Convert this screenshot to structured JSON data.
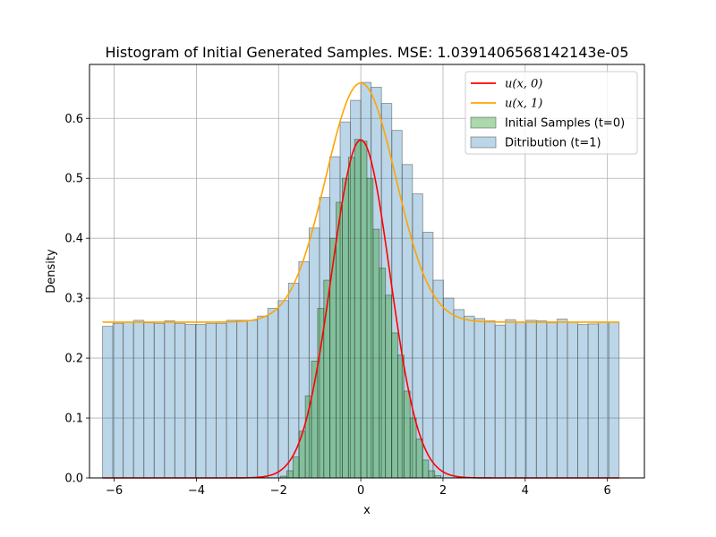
{
  "chart_data": {
    "type": "bar",
    "title": "Histogram of Initial Generated Samples. MSE: 1.0391406568142143e-05",
    "xlabel": "x",
    "ylabel": "Density",
    "xlim": [
      -6.6,
      6.9
    ],
    "ylim": [
      0,
      0.69
    ],
    "xticks": [
      -6,
      -4,
      -2,
      0,
      2,
      4,
      6
    ],
    "xtick_labels": [
      "−6",
      "−4",
      "−2",
      "0",
      "2",
      "4",
      "6"
    ],
    "yticks": [
      0.0,
      0.1,
      0.2,
      0.3,
      0.4,
      0.5,
      0.6
    ],
    "ytick_labels": [
      "0.0",
      "0.1",
      "0.2",
      "0.3",
      "0.4",
      "0.5",
      "0.6"
    ],
    "grid": true,
    "legend_position": "top-right",
    "colors": {
      "u0": "#ff0000",
      "u1": "#ffa500",
      "initial_fill": "rgba(44,160,44,0.4)",
      "dist_fill": "rgba(31,119,180,0.3)"
    },
    "series": [
      {
        "name": "Ditribution (t=1)",
        "kind": "histogram",
        "bin_edges_range": [
          -6.283,
          6.283
        ],
        "bin_count": 50,
        "values": [
          0.253,
          0.258,
          0.26,
          0.263,
          0.259,
          0.258,
          0.262,
          0.258,
          0.256,
          0.256,
          0.258,
          0.258,
          0.263,
          0.263,
          0.263,
          0.27,
          0.283,
          0.296,
          0.325,
          0.361,
          0.417,
          0.468,
          0.536,
          0.594,
          0.63,
          0.66,
          0.652,
          0.625,
          0.58,
          0.523,
          0.474,
          0.41,
          0.33,
          0.3,
          0.281,
          0.27,
          0.266,
          0.262,
          0.255,
          0.264,
          0.26,
          0.263,
          0.262,
          0.259,
          0.265,
          0.26,
          0.256,
          0.257,
          0.26,
          0.26
        ]
      },
      {
        "name": "Initial Samples (t=0)",
        "kind": "histogram",
        "bin_edges": [
          -1.95,
          -1.8,
          -1.65,
          -1.5,
          -1.35,
          -1.2,
          -1.05,
          -0.9,
          -0.75,
          -0.6,
          -0.45,
          -0.3,
          -0.15,
          0.0,
          0.15,
          0.3,
          0.45,
          0.6,
          0.75,
          0.9,
          1.05,
          1.2,
          1.35,
          1.5,
          1.65,
          1.8,
          1.95
        ],
        "values": [
          0.003,
          0.012,
          0.035,
          0.078,
          0.137,
          0.195,
          0.283,
          0.33,
          0.4,
          0.46,
          0.5,
          0.535,
          0.565,
          0.562,
          0.5,
          0.415,
          0.35,
          0.305,
          0.242,
          0.205,
          0.145,
          0.1,
          0.065,
          0.03,
          0.012,
          0.004
        ]
      },
      {
        "name": "u(x, 0)",
        "kind": "line",
        "formula": "gaussian",
        "peak": 0.564,
        "sigma": 0.707,
        "x_range": [
          -6.283,
          6.283
        ]
      },
      {
        "name": "u(x, 1)",
        "kind": "line",
        "formula": "gaussian-plus-constant",
        "baseline": 0.26,
        "amplitude": 0.399,
        "sigma": 0.85,
        "x_range": [
          -6.283,
          6.283
        ]
      }
    ],
    "legend": [
      {
        "label": "u(x, 0)",
        "type": "line",
        "color": "#ff0000"
      },
      {
        "label": "u(x, 1)",
        "type": "line",
        "color": "#ffa500"
      },
      {
        "label": "Initial Samples (t=0)",
        "type": "patch",
        "color": "rgba(44,160,44,0.4)"
      },
      {
        "label": "Ditribution (t=1)",
        "type": "patch",
        "color": "rgba(31,119,180,0.3)"
      }
    ]
  }
}
